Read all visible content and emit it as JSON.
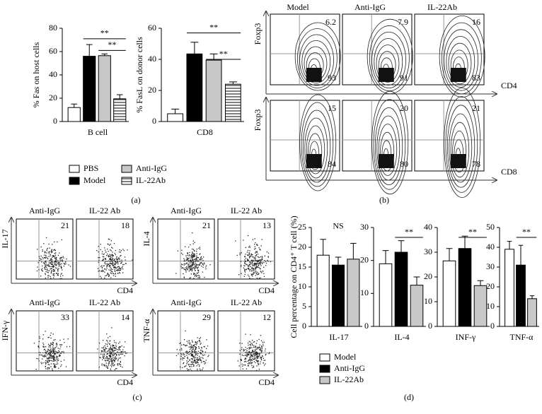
{
  "chart_data": [
    {
      "type": "bar",
      "ylabel": "% Fas on host cells",
      "categories": [
        "B cell"
      ],
      "ylim": [
        0,
        80
      ],
      "yticks": [
        0,
        20,
        40,
        60,
        80
      ],
      "series": [
        {
          "name": "PBS",
          "color": "#ffffff",
          "values": [
            12
          ],
          "errors": [
            3
          ]
        },
        {
          "name": "Model",
          "color": "#000000",
          "values": [
            56
          ],
          "errors": [
            10
          ]
        },
        {
          "name": "Anti-IgG",
          "color": "#c8c8c8",
          "values": [
            56.5
          ],
          "errors": [
            1.5
          ]
        },
        {
          "name": "IL-22Ab",
          "color": "#ffffff",
          "hatch": true,
          "values": [
            19.5
          ],
          "errors": [
            3.5
          ]
        }
      ],
      "annotations": [
        {
          "text": "**",
          "from": 1,
          "to": 3,
          "y": 71
        },
        {
          "text": "**",
          "from": 2,
          "to": 3,
          "y": 61
        }
      ]
    },
    {
      "type": "bar",
      "ylabel": "% FasL on donor cells",
      "categories": [
        "CD8"
      ],
      "ylim": [
        0,
        60
      ],
      "yticks": [
        0,
        20,
        40,
        60
      ],
      "series": [
        {
          "color": "#ffffff",
          "values": [
            5
          ],
          "errors": [
            3
          ]
        },
        {
          "color": "#000000",
          "values": [
            43.5
          ],
          "errors": [
            7.5
          ]
        },
        {
          "color": "#c8c8c8",
          "values": [
            39.5
          ],
          "errors": [
            4
          ]
        },
        {
          "color": "#ffffff",
          "hatch": true,
          "values": [
            24
          ],
          "errors": [
            1.5
          ]
        }
      ],
      "annotations": [
        {
          "text": "**",
          "from": 1,
          "to": 3,
          "y": 57
        },
        {
          "text": "**",
          "from": 2,
          "to": 3,
          "y": 40
        }
      ]
    },
    {
      "type": "bar",
      "ylabel": "Cell percentage on CD4⁺ T cell (%)",
      "categories": [
        "IL-17"
      ],
      "ylim": [
        0,
        25
      ],
      "yticks": [
        0,
        5,
        10,
        15,
        20,
        25
      ],
      "series": [
        {
          "name": "Model",
          "color": "#ffffff",
          "values": [
            18
          ],
          "errors": [
            4
          ]
        },
        {
          "name": "Anti-IgG",
          "color": "#000000",
          "values": [
            15.5
          ],
          "errors": [
            2
          ]
        },
        {
          "name": "IL-22Ab",
          "color": "#c8c8c8",
          "values": [
            17
          ],
          "errors": [
            4
          ]
        }
      ],
      "annotations": [
        {
          "text": "NS",
          "from": 0,
          "to": 2,
          "y": 24,
          "line": false
        }
      ]
    },
    {
      "type": "bar",
      "categories": [
        "IL-4"
      ],
      "ylim": [
        0,
        30
      ],
      "yticks": [
        0,
        10,
        20,
        30
      ],
      "series": [
        {
          "color": "#ffffff",
          "values": [
            19
          ],
          "errors": [
            4
          ]
        },
        {
          "color": "#000000",
          "values": [
            22.5
          ],
          "errors": [
            3.5
          ]
        },
        {
          "color": "#c8c8c8",
          "values": [
            12.5
          ],
          "errors": [
            2.5
          ]
        }
      ],
      "annotations": [
        {
          "text": "**",
          "from": 1,
          "to": 2,
          "y": 27
        }
      ]
    },
    {
      "type": "bar",
      "categories": [
        "INF-γ"
      ],
      "ylim": [
        0,
        40
      ],
      "yticks": [
        0,
        10,
        20,
        30,
        40
      ],
      "series": [
        {
          "color": "#ffffff",
          "values": [
            26.5
          ],
          "errors": [
            5
          ]
        },
        {
          "color": "#000000",
          "values": [
            31.5
          ],
          "errors": [
            5
          ]
        },
        {
          "color": "#c8c8c8",
          "values": [
            16.5
          ],
          "errors": [
            2
          ]
        }
      ],
      "annotations": [
        {
          "text": "**",
          "from": 1,
          "to": 2,
          "y": 36
        }
      ]
    },
    {
      "type": "bar",
      "categories": [
        "TNF-α"
      ],
      "ylim": [
        0,
        50
      ],
      "yticks": [
        0,
        10,
        20,
        30,
        40,
        50
      ],
      "series": [
        {
          "color": "#ffffff",
          "values": [
            39
          ],
          "errors": [
            4
          ]
        },
        {
          "color": "#000000",
          "values": [
            31
          ],
          "errors": [
            10
          ]
        },
        {
          "color": "#c8c8c8",
          "values": [
            14
          ],
          "errors": [
            1.5
          ]
        }
      ],
      "annotations": [
        {
          "text": "**",
          "from": 1,
          "to": 2,
          "y": 45
        }
      ]
    }
  ],
  "flow_b": {
    "columns": [
      "Model",
      "Anti-IgG",
      "IL-22Ab"
    ],
    "rows": [
      {
        "ylabel": "Foxp3",
        "xlabel": "CD4",
        "top": [
          6.2,
          7.9,
          16
        ],
        "bottom": [
          93,
          91,
          83
        ]
      },
      {
        "ylabel": "Foxp3",
        "xlabel": "CD8",
        "top": [
          15,
          20,
          21
        ],
        "bottom": [
          84,
          80,
          78
        ]
      }
    ]
  },
  "flow_c": {
    "panels": [
      {
        "ylabel": "IL-17",
        "xlabel": "CD4",
        "columns": [
          "Anti-IgG",
          "IL-22 Ab"
        ],
        "values": [
          21,
          18
        ]
      },
      {
        "ylabel": "IL-4",
        "xlabel": "CD4",
        "columns": [
          "Anti-IgG",
          "IL-22 Ab"
        ],
        "values": [
          21,
          13
        ]
      },
      {
        "ylabel": "IFN-γ",
        "xlabel": "CD4",
        "columns": [
          "Anti-IgG",
          "IL-22 Ab"
        ],
        "values": [
          33,
          14
        ]
      },
      {
        "ylabel": "TNF-α",
        "xlabel": "CD4",
        "columns": [
          "Anti-IgG",
          "IL-22 Ab"
        ],
        "values": [
          29,
          12
        ]
      }
    ]
  },
  "panel_labels": [
    "(a)",
    "(b)",
    "(c)",
    "(d)"
  ]
}
